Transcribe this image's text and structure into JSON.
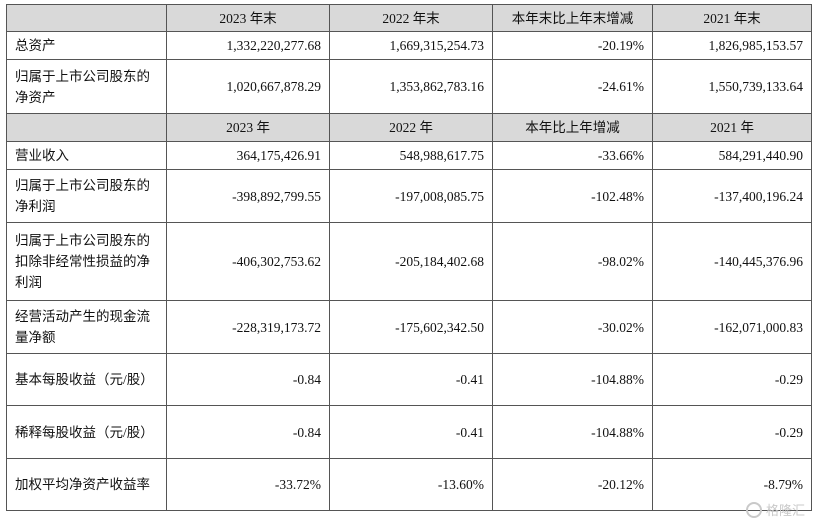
{
  "table": {
    "header1": [
      "",
      "2023 年末",
      "2022 年末",
      "本年末比上年末增减",
      "2021 年末"
    ],
    "rows1": [
      {
        "label": "总资产",
        "values": [
          "1,332,220,277.68",
          "1,669,315,254.73",
          "-20.19%",
          "1,826,985,153.57"
        ]
      },
      {
        "label": "归属于上市公司股东的净资产",
        "values": [
          "1,020,667,878.29",
          "1,353,862,783.16",
          "-24.61%",
          "1,550,739,133.64"
        ]
      }
    ],
    "header2": [
      "",
      "2023 年",
      "2022 年",
      "本年比上年增减",
      "2021 年"
    ],
    "rows2": [
      {
        "label": "营业收入",
        "values": [
          "364,175,426.91",
          "548,988,617.75",
          "-33.66%",
          "584,291,440.90"
        ]
      },
      {
        "label": "归属于上市公司股东的净利润",
        "values": [
          "-398,892,799.55",
          "-197,008,085.75",
          "-102.48%",
          "-137,400,196.24"
        ]
      },
      {
        "label": "归属于上市公司股东的扣除非经常性损益的净利润",
        "values": [
          "-406,302,753.62",
          "-205,184,402.68",
          "-98.02%",
          "-140,445,376.96"
        ]
      },
      {
        "label": "经营活动产生的现金流量净额",
        "values": [
          "-228,319,173.72",
          "-175,602,342.50",
          "-30.02%",
          "-162,071,000.83"
        ]
      },
      {
        "label": "基本每股收益（元/股）",
        "values": [
          "-0.84",
          "-0.41",
          "-104.88%",
          "-0.29"
        ]
      },
      {
        "label": "稀释每股收益（元/股）",
        "values": [
          "-0.84",
          "-0.41",
          "-104.88%",
          "-0.29"
        ]
      },
      {
        "label": "加权平均净资产收益率",
        "values": [
          "-33.72%",
          "-13.60%",
          "-20.12%",
          "-8.79%"
        ]
      }
    ]
  },
  "watermark": {
    "text": "格隆汇",
    "icon": "watermark-logo-icon"
  }
}
